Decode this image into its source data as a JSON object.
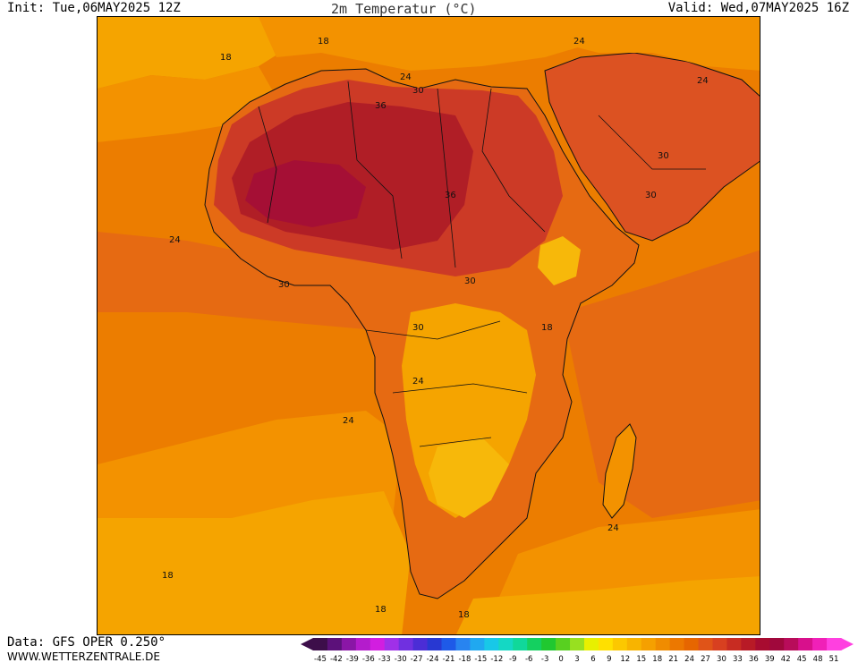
{
  "header": {
    "init": "Init: Tue,06MAY2025 12Z",
    "title": "2m Temperatur (°C)",
    "valid": "Valid: Wed,07MAY2025 16Z"
  },
  "footer": {
    "data_source": "Data: GFS OPER 0.250°",
    "site": "WWW.WETTERZENTRALE.DE"
  },
  "map": {
    "region": "Africa",
    "colors": {
      "t15": "#f7b80a",
      "t18": "#f5a400",
      "t21": "#f39200",
      "t24": "#ec7d00",
      "t27": "#e66a12",
      "t30": "#dc5222",
      "t33": "#cc3a26",
      "t36": "#b01e26",
      "t39": "#a50f35",
      "border": "#111111"
    },
    "contour_labels": [
      {
        "text": "18",
        "place": "north-atlantic"
      },
      {
        "text": "18",
        "place": "mediterranean"
      },
      {
        "text": "24",
        "place": "libya-coast"
      },
      {
        "text": "24",
        "place": "turkey"
      },
      {
        "text": "24",
        "place": "arabia-north"
      },
      {
        "text": "30",
        "place": "libya"
      },
      {
        "text": "36",
        "place": "algeria"
      },
      {
        "text": "36",
        "place": "chad"
      },
      {
        "text": "30",
        "place": "saudi"
      },
      {
        "text": "30",
        "place": "yemen"
      },
      {
        "text": "24",
        "place": "west-atlantic"
      },
      {
        "text": "30",
        "place": "guinea-coast"
      },
      {
        "text": "30",
        "place": "central-africa"
      },
      {
        "text": "30",
        "place": "congo"
      },
      {
        "text": "18",
        "place": "east-africa"
      },
      {
        "text": "24",
        "place": "angola"
      },
      {
        "text": "24",
        "place": "south-atlantic"
      },
      {
        "text": "24",
        "place": "mozambique-channel"
      },
      {
        "text": "18",
        "place": "south-west"
      },
      {
        "text": "18",
        "place": "south-center"
      },
      {
        "text": "18",
        "place": "cape"
      }
    ]
  },
  "legend": {
    "colors": [
      "#3d0e4a",
      "#5c117a",
      "#8a16a6",
      "#b41ccc",
      "#d21ee0",
      "#a030e8",
      "#7030e0",
      "#4b2dd6",
      "#2838d2",
      "#1e5ae8",
      "#2884f0",
      "#20a8f0",
      "#18c8e8",
      "#14d8c4",
      "#10d89a",
      "#14d060",
      "#20c830",
      "#58d020",
      "#98e020",
      "#e8f000",
      "#ffe000",
      "#fcc800",
      "#f8b400",
      "#f5a000",
      "#f08c00",
      "#ec7800",
      "#e66600",
      "#e05418",
      "#d84020",
      "#c82c22",
      "#b81a26",
      "#a80c30",
      "#a0083c",
      "#b80c5a",
      "#d8108c",
      "#f020b8",
      "#ff40e0"
    ],
    "ticks": [
      "-45",
      "-42",
      "-39",
      "-36",
      "-33",
      "-30",
      "-27",
      "-24",
      "-21",
      "-18",
      "-15",
      "-12",
      "-9",
      "-6",
      "-3",
      "0",
      "3",
      "6",
      "9",
      "12",
      "15",
      "18",
      "21",
      "24",
      "27",
      "30",
      "33",
      "36",
      "39",
      "42",
      "45",
      "48",
      "51"
    ]
  }
}
